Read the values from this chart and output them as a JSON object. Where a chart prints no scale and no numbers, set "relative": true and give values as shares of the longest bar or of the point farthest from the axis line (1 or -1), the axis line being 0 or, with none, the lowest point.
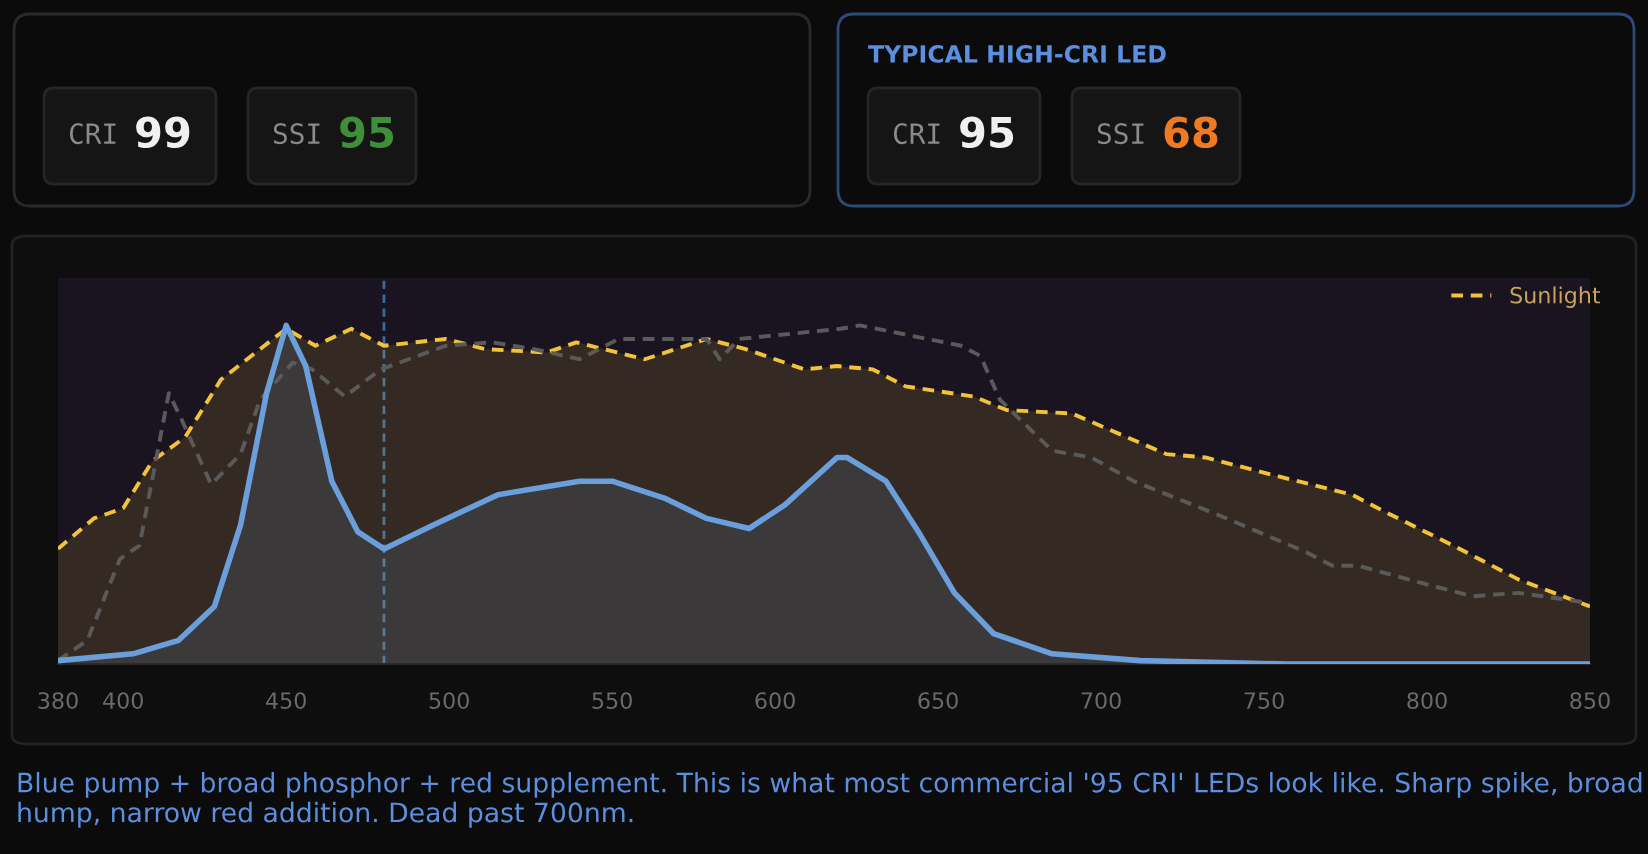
{
  "chart_data": [
    {
      "type": "other",
      "annotations": [
        "CRI",
        "99",
        "SSI",
        "95"
      ],
      "colors": [
        "#8a8a8a",
        "#f0f0f0",
        "#8a8a8a",
        "#3f8f3a"
      ]
    },
    {
      "type": "other",
      "title": "TYPICAL HIGH-CRI LED",
      "annotations": [
        "CRI",
        "95",
        "SSI",
        "68"
      ],
      "colors": [
        "#8a8a8a",
        "#f0f0f0",
        "#8a8a8a",
        "#f07a22"
      ]
    },
    {
      "type": "line",
      "relative": true,
      "xlim": [
        380,
        850
      ],
      "xticks": [
        380,
        400,
        450,
        500,
        550,
        600,
        650,
        700,
        750,
        800,
        850
      ],
      "grid": false,
      "legend": "top right",
      "ref_lines": [
        {
          "axis": "x",
          "value": 480,
          "color": "#3a6a9a",
          "line_style": "dashed"
        }
      ],
      "annotations": [
        "Blue pump + broad phosphor + red supplement. This is what most commercial '95 CRI' LEDs look like. Sharp spike, broad hump, narrow red addition. Dead past 700nm."
      ],
      "series": [
        {
          "name": "Sunlight",
          "type": "area",
          "color": "#f2c23a",
          "line_style": "dashed",
          "x": [
            380,
            391,
            400,
            409,
            419,
            430,
            450,
            459,
            470,
            480,
            499,
            511,
            530,
            539,
            560,
            579,
            591,
            609,
            619,
            630,
            640,
            661,
            671,
            691,
            720,
            732,
            752,
            777,
            787,
            808,
            828,
            850
          ],
          "values": [
            0.34,
            0.43,
            0.46,
            0.6,
            0.67,
            0.84,
            0.99,
            0.94,
            0.99,
            0.94,
            0.96,
            0.93,
            0.92,
            0.95,
            0.9,
            0.96,
            0.93,
            0.87,
            0.88,
            0.87,
            0.82,
            0.79,
            0.75,
            0.74,
            0.62,
            0.61,
            0.56,
            0.5,
            0.45,
            0.35,
            0.25,
            0.17
          ]
        },
        {
          "type": "line",
          "color": "#5a5a5a",
          "line_style": "dashed",
          "x": [
            380,
            389,
            399,
            405,
            410,
            414,
            418,
            427,
            436,
            442,
            452,
            458,
            468,
            479,
            499,
            513,
            526,
            540,
            552,
            566,
            579,
            583,
            589,
            620,
            626,
            657,
            663,
            669,
            685,
            697,
            710,
            736,
            763,
            771,
            779,
            798,
            814,
            828,
            850
          ],
          "values": [
            0.01,
            0.07,
            0.31,
            0.35,
            0.6,
            0.8,
            0.72,
            0.53,
            0.62,
            0.78,
            0.89,
            0.87,
            0.79,
            0.87,
            0.94,
            0.95,
            0.93,
            0.9,
            0.96,
            0.96,
            0.96,
            0.9,
            0.96,
            0.99,
            1.0,
            0.94,
            0.91,
            0.78,
            0.63,
            0.61,
            0.54,
            0.44,
            0.33,
            0.29,
            0.29,
            0.24,
            0.2,
            0.21,
            0.18
          ]
        },
        {
          "type": "area",
          "color": "#6a9fdc",
          "line_style": "solid",
          "x": [
            380,
            403,
            417,
            428,
            436,
            444,
            450,
            456,
            464,
            472,
            480,
            495,
            515,
            540,
            550,
            566,
            579,
            592,
            603,
            619,
            622,
            634,
            644,
            655,
            667,
            685,
            712,
            757,
            850
          ],
          "values": [
            0.01,
            0.03,
            0.07,
            0.17,
            0.41,
            0.8,
            1.0,
            0.88,
            0.54,
            0.39,
            0.34,
            0.41,
            0.5,
            0.54,
            0.54,
            0.49,
            0.43,
            0.4,
            0.47,
            0.61,
            0.61,
            0.54,
            0.39,
            0.21,
            0.09,
            0.03,
            0.01,
            0,
            0
          ]
        }
      ]
    }
  ]
}
